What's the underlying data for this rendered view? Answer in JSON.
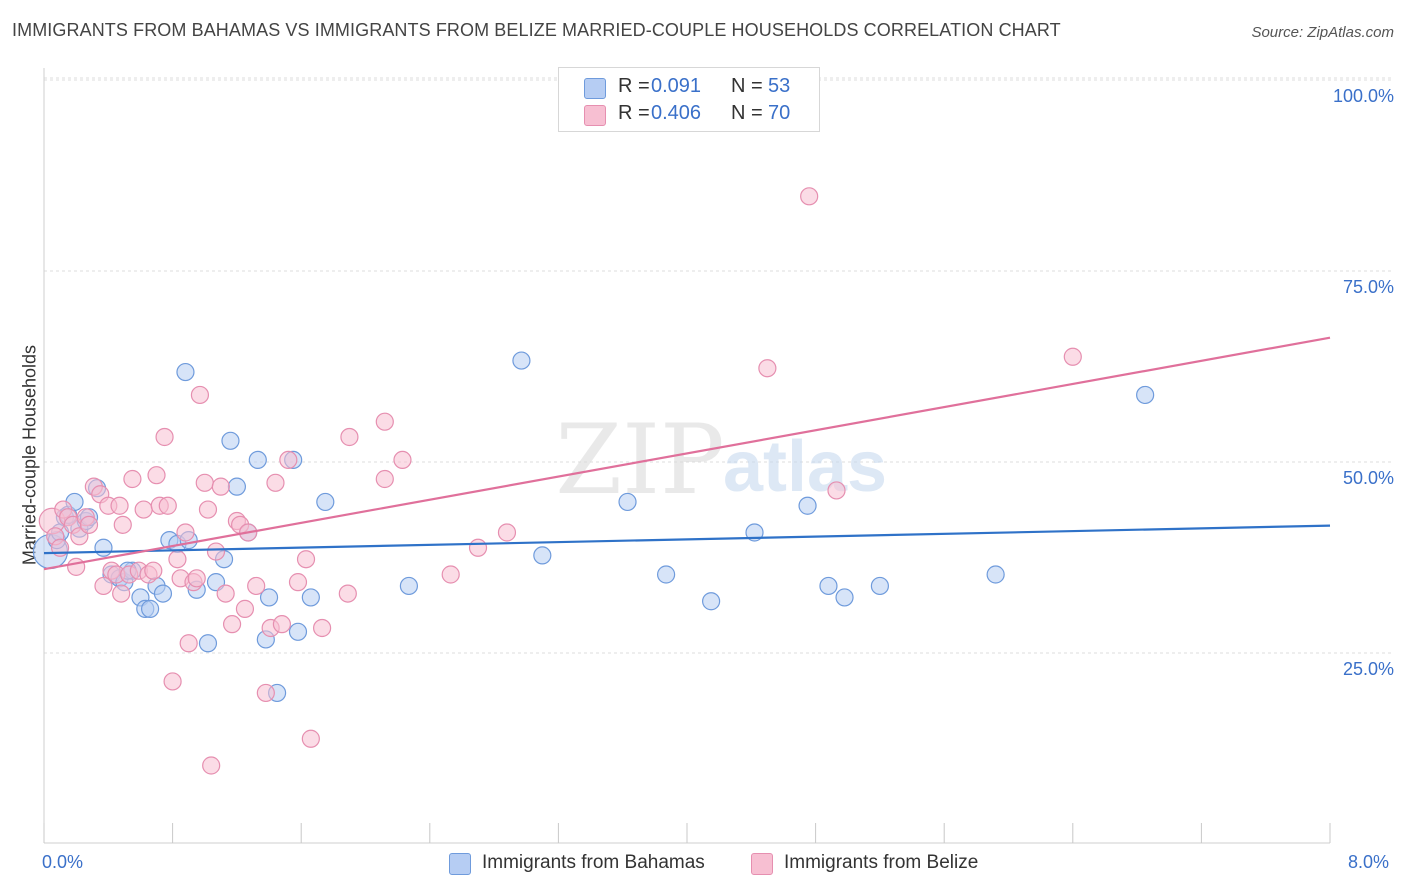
{
  "header": {
    "title": "IMMIGRANTS FROM BAHAMAS VS IMMIGRANTS FROM BELIZE MARRIED-COUPLE HOUSEHOLDS CORRELATION CHART",
    "source": "Source: ZipAtlas.com"
  },
  "legend": {
    "r_label": "R =",
    "n_label": "N =",
    "rows": [
      {
        "r": "0.091",
        "n": "53"
      },
      {
        "r": "0.406",
        "n": "70"
      }
    ]
  },
  "watermark": {
    "zip": "ZIP",
    "atlas": "atlas"
  },
  "chart_data": {
    "type": "scatter",
    "title": "IMMIGRANTS FROM BAHAMAS VS IMMIGRANTS FROM BELIZE MARRIED-COUPLE HOUSEHOLDS CORRELATION CHART",
    "xlabel": "",
    "ylabel": "Married-couple Households",
    "xlim": [
      0,
      8
    ],
    "ylim": [
      0,
      105
    ],
    "x_tick_labels": [
      "0.0%",
      "8.0%"
    ],
    "y_ticks": [
      25,
      50,
      75,
      100
    ],
    "y_tick_labels": [
      "25.0%",
      "50.0%",
      "75.0%",
      "100.0%"
    ],
    "grid": true,
    "legend_position": "top-center",
    "colors": {
      "bahamas_fill": "#b6cdf3",
      "bahamas_stroke": "#6f9bdc",
      "bahamas_line": "#2f72c8",
      "belize_fill": "#f7bfd2",
      "belize_stroke": "#e68fb0",
      "belize_line": "#e0709b",
      "tick_text": "#3a70c9"
    },
    "series": [
      {
        "name": "Immigrants from Bahamas",
        "R": 0.091,
        "N": 53,
        "trend": {
          "x": [
            0,
            8
          ],
          "y": [
            40.3,
            43.9
          ]
        },
        "points": [
          {
            "x": 0.04,
            "y": 40.5,
            "s": 2
          },
          {
            "x": 0.08,
            "y": 42.0
          },
          {
            "x": 0.1,
            "y": 43.0
          },
          {
            "x": 0.13,
            "y": 45.0
          },
          {
            "x": 0.15,
            "y": 45.3
          },
          {
            "x": 0.19,
            "y": 47.0
          },
          {
            "x": 0.22,
            "y": 43.5
          },
          {
            "x": 0.26,
            "y": 44.5
          },
          {
            "x": 0.33,
            "y": 48.8
          },
          {
            "x": 0.37,
            "y": 41.0
          },
          {
            "x": 0.42,
            "y": 37.5
          },
          {
            "x": 0.47,
            "y": 37.0
          },
          {
            "x": 0.5,
            "y": 36.5
          },
          {
            "x": 0.55,
            "y": 38.0
          },
          {
            "x": 0.6,
            "y": 34.5
          },
          {
            "x": 0.63,
            "y": 33.0
          },
          {
            "x": 0.66,
            "y": 33.0
          },
          {
            "x": 0.7,
            "y": 36.0
          },
          {
            "x": 0.74,
            "y": 35.0
          },
          {
            "x": 0.78,
            "y": 42.0
          },
          {
            "x": 0.83,
            "y": 41.5
          },
          {
            "x": 0.9,
            "y": 42.0
          },
          {
            "x": 0.88,
            "y": 64.0
          },
          {
            "x": 0.95,
            "y": 35.5
          },
          {
            "x": 1.02,
            "y": 28.5
          },
          {
            "x": 1.07,
            "y": 36.5
          },
          {
            "x": 1.12,
            "y": 39.5
          },
          {
            "x": 1.16,
            "y": 55.0
          },
          {
            "x": 1.2,
            "y": 49.0
          },
          {
            "x": 1.27,
            "y": 43.0
          },
          {
            "x": 1.33,
            "y": 52.5
          },
          {
            "x": 1.38,
            "y": 29.0
          },
          {
            "x": 1.4,
            "y": 34.5
          },
          {
            "x": 1.45,
            "y": 22.0
          },
          {
            "x": 1.55,
            "y": 52.5
          },
          {
            "x": 1.58,
            "y": 30.0
          },
          {
            "x": 1.66,
            "y": 34.5
          },
          {
            "x": 1.75,
            "y": 47.0
          },
          {
            "x": 2.27,
            "y": 36.0
          },
          {
            "x": 2.97,
            "y": 65.5
          },
          {
            "x": 3.1,
            "y": 40.0
          },
          {
            "x": 3.63,
            "y": 47.0
          },
          {
            "x": 3.87,
            "y": 37.5
          },
          {
            "x": 4.15,
            "y": 34.0
          },
          {
            "x": 4.42,
            "y": 43.0
          },
          {
            "x": 4.75,
            "y": 46.5
          },
          {
            "x": 4.88,
            "y": 36.0
          },
          {
            "x": 4.98,
            "y": 34.5
          },
          {
            "x": 5.2,
            "y": 36.0
          },
          {
            "x": 5.92,
            "y": 37.5
          },
          {
            "x": 6.85,
            "y": 61.0
          },
          {
            "x": 0.28,
            "y": 45.0
          },
          {
            "x": 0.52,
            "y": 38.0
          }
        ]
      },
      {
        "name": "Immigrants from Belize",
        "R": 0.406,
        "N": 70,
        "trend": {
          "x": [
            0,
            8
          ],
          "y": [
            38.2,
            68.5
          ]
        },
        "points": [
          {
            "x": 0.05,
            "y": 44.5,
            "s": 1.5
          },
          {
            "x": 0.07,
            "y": 42.5
          },
          {
            "x": 0.1,
            "y": 41.0
          },
          {
            "x": 0.12,
            "y": 46.0
          },
          {
            "x": 0.15,
            "y": 45.0
          },
          {
            "x": 0.18,
            "y": 44.0
          },
          {
            "x": 0.2,
            "y": 38.5
          },
          {
            "x": 0.22,
            "y": 42.5
          },
          {
            "x": 0.26,
            "y": 45.0
          },
          {
            "x": 0.28,
            "y": 44.0
          },
          {
            "x": 0.31,
            "y": 49.0
          },
          {
            "x": 0.35,
            "y": 48.0
          },
          {
            "x": 0.37,
            "y": 36.0
          },
          {
            "x": 0.4,
            "y": 46.5
          },
          {
            "x": 0.42,
            "y": 38.0
          },
          {
            "x": 0.45,
            "y": 37.5
          },
          {
            "x": 0.47,
            "y": 46.5
          },
          {
            "x": 0.48,
            "y": 35.0
          },
          {
            "x": 0.49,
            "y": 44.0
          },
          {
            "x": 0.53,
            "y": 37.5
          },
          {
            "x": 0.55,
            "y": 50.0
          },
          {
            "x": 0.59,
            "y": 38.0
          },
          {
            "x": 0.62,
            "y": 46.0
          },
          {
            "x": 0.65,
            "y": 37.5
          },
          {
            "x": 0.68,
            "y": 38.0
          },
          {
            "x": 0.7,
            "y": 50.5
          },
          {
            "x": 0.72,
            "y": 46.5
          },
          {
            "x": 0.75,
            "y": 55.5
          },
          {
            "x": 0.77,
            "y": 46.5
          },
          {
            "x": 0.8,
            "y": 23.5
          },
          {
            "x": 0.83,
            "y": 39.5
          },
          {
            "x": 0.85,
            "y": 37.0
          },
          {
            "x": 0.88,
            "y": 43.0
          },
          {
            "x": 0.9,
            "y": 28.5
          },
          {
            "x": 0.93,
            "y": 36.5
          },
          {
            "x": 0.95,
            "y": 37.0
          },
          {
            "x": 0.97,
            "y": 61.0
          },
          {
            "x": 1.0,
            "y": 49.5
          },
          {
            "x": 1.02,
            "y": 46.0
          },
          {
            "x": 1.04,
            "y": 12.5
          },
          {
            "x": 1.07,
            "y": 40.5
          },
          {
            "x": 1.1,
            "y": 49.0
          },
          {
            "x": 1.13,
            "y": 35.0
          },
          {
            "x": 1.17,
            "y": 31.0
          },
          {
            "x": 1.2,
            "y": 44.5
          },
          {
            "x": 1.22,
            "y": 44.0
          },
          {
            "x": 1.27,
            "y": 43.0
          },
          {
            "x": 1.32,
            "y": 36.0
          },
          {
            "x": 1.38,
            "y": 22.0
          },
          {
            "x": 1.41,
            "y": 30.5
          },
          {
            "x": 1.44,
            "y": 49.5
          },
          {
            "x": 1.48,
            "y": 31.0
          },
          {
            "x": 1.52,
            "y": 52.5
          },
          {
            "x": 1.58,
            "y": 36.5
          },
          {
            "x": 1.63,
            "y": 39.5
          },
          {
            "x": 1.66,
            "y": 16.0
          },
          {
            "x": 1.73,
            "y": 30.5
          },
          {
            "x": 1.89,
            "y": 35.0
          },
          {
            "x": 1.9,
            "y": 55.5
          },
          {
            "x": 2.12,
            "y": 50.0
          },
          {
            "x": 2.12,
            "y": 57.5
          },
          {
            "x": 2.23,
            "y": 52.5
          },
          {
            "x": 2.53,
            "y": 37.5
          },
          {
            "x": 2.7,
            "y": 41.0
          },
          {
            "x": 2.88,
            "y": 43.0
          },
          {
            "x": 4.5,
            "y": 64.5
          },
          {
            "x": 4.76,
            "y": 87.0
          },
          {
            "x": 4.93,
            "y": 48.5
          },
          {
            "x": 6.4,
            "y": 66.0
          },
          {
            "x": 1.25,
            "y": 33.0
          }
        ]
      }
    ]
  }
}
